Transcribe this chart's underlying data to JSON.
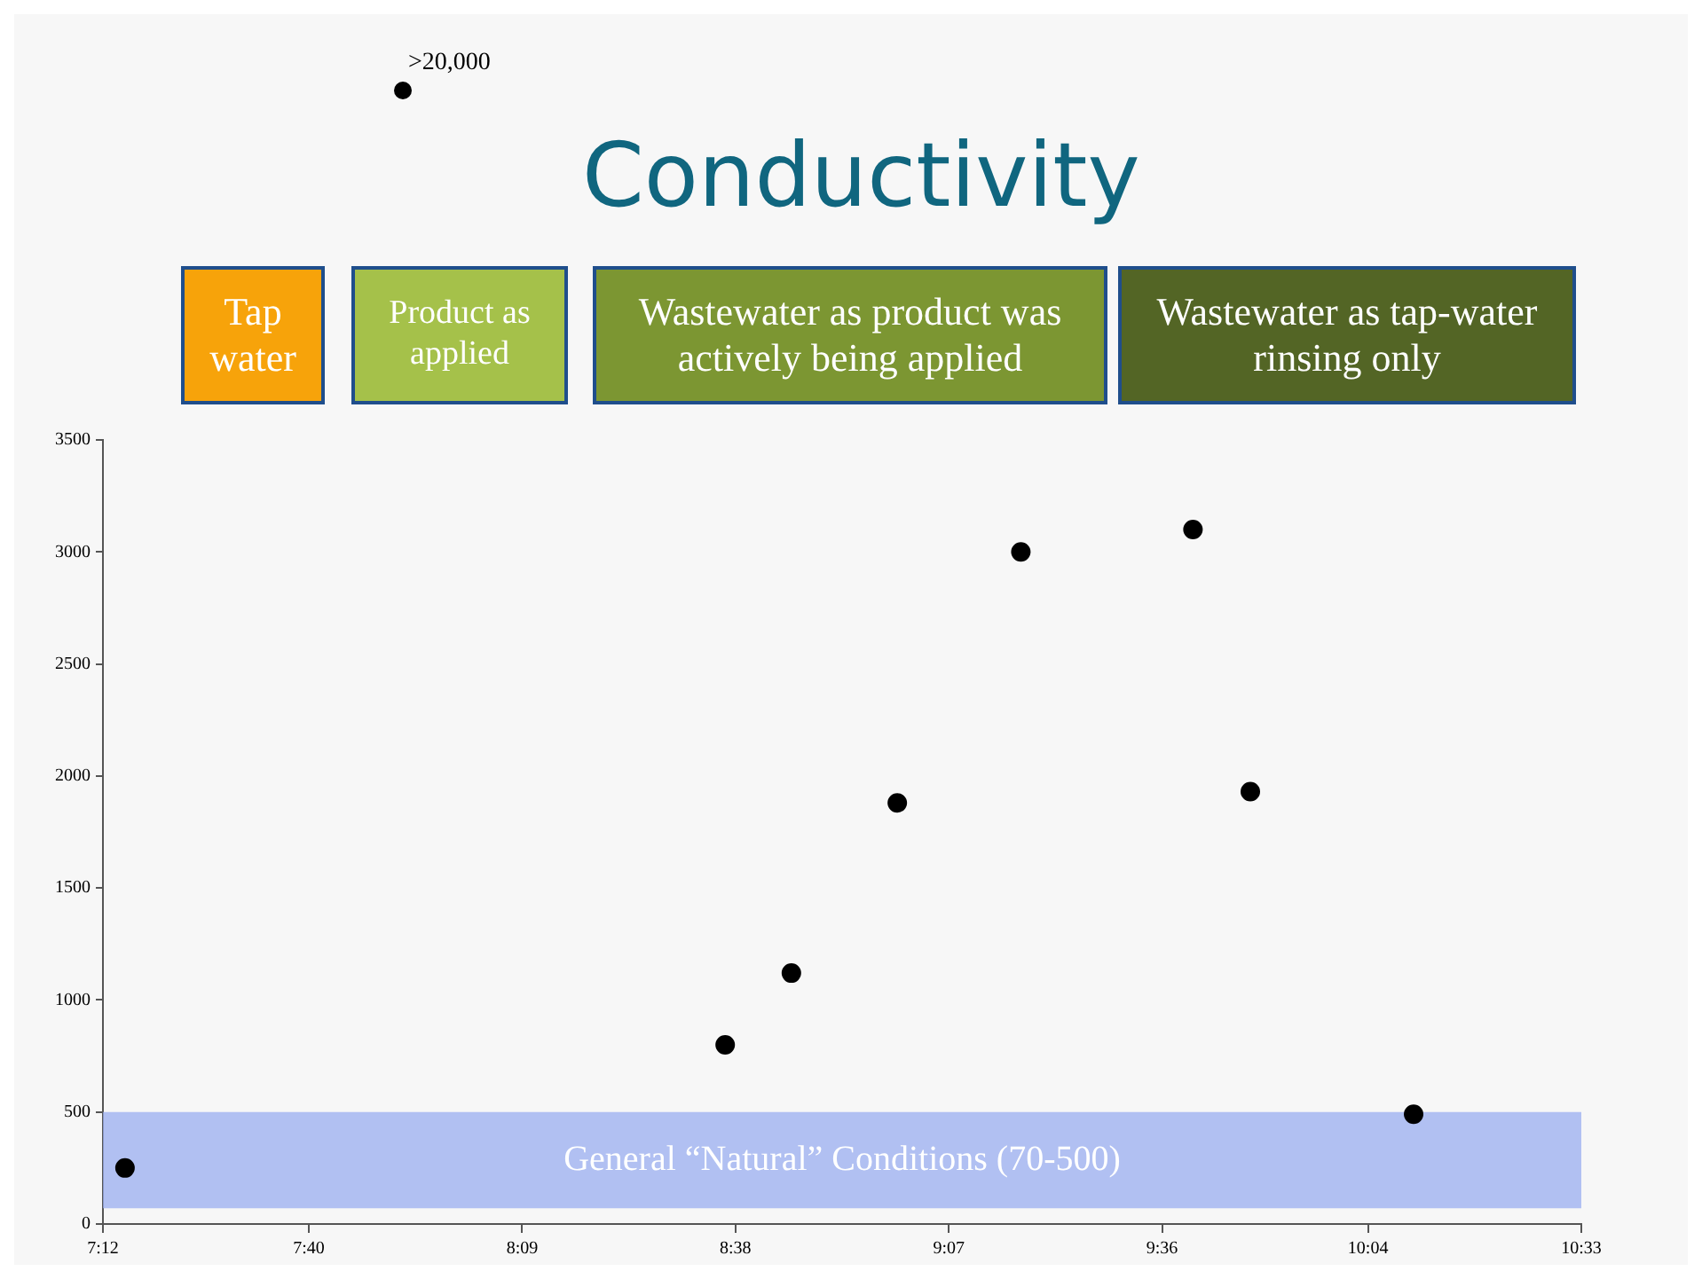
{
  "chart_data": {
    "type": "scatter",
    "title": "Conductivity",
    "x": [
      7.25,
      8.61,
      8.76,
      9.0,
      9.28,
      9.67,
      9.8,
      10.17
    ],
    "series": [
      {
        "color": "#000000",
        "values": [
          250,
          800,
          1120,
          1880,
          3000,
          3100,
          1930,
          490
        ]
      }
    ],
    "xlim": [
      7.2,
      10.55
    ],
    "xticks": [
      {
        "value": 7.2,
        "label": "7:12"
      },
      {
        "value": 7.6667,
        "label": "7:40"
      },
      {
        "value": 8.15,
        "label": "8:09"
      },
      {
        "value": 8.6333,
        "label": "8:38"
      },
      {
        "value": 9.1167,
        "label": "9:07"
      },
      {
        "value": 9.6,
        "label": "9:36"
      },
      {
        "value": 10.0667,
        "label": "10:04"
      },
      {
        "value": 10.55,
        "label": "10:33"
      }
    ],
    "ylim": [
      0,
      3500
    ],
    "yticks": [
      0,
      500,
      1000,
      1500,
      2000,
      2500,
      3000,
      3500
    ],
    "grid": false,
    "legend": false,
    "marker": "circle",
    "bands": [
      {
        "axis": "y",
        "from": 70,
        "to": 500,
        "label": "General “Natural” Conditions (70-500)",
        "color": "#9aaef0"
      }
    ],
    "annotations": [
      ">20,000",
      "Tap water",
      "Product as applied",
      "Wastewater as product was actively being applied",
      "Wastewater as tap-water rinsing only"
    ]
  }
}
